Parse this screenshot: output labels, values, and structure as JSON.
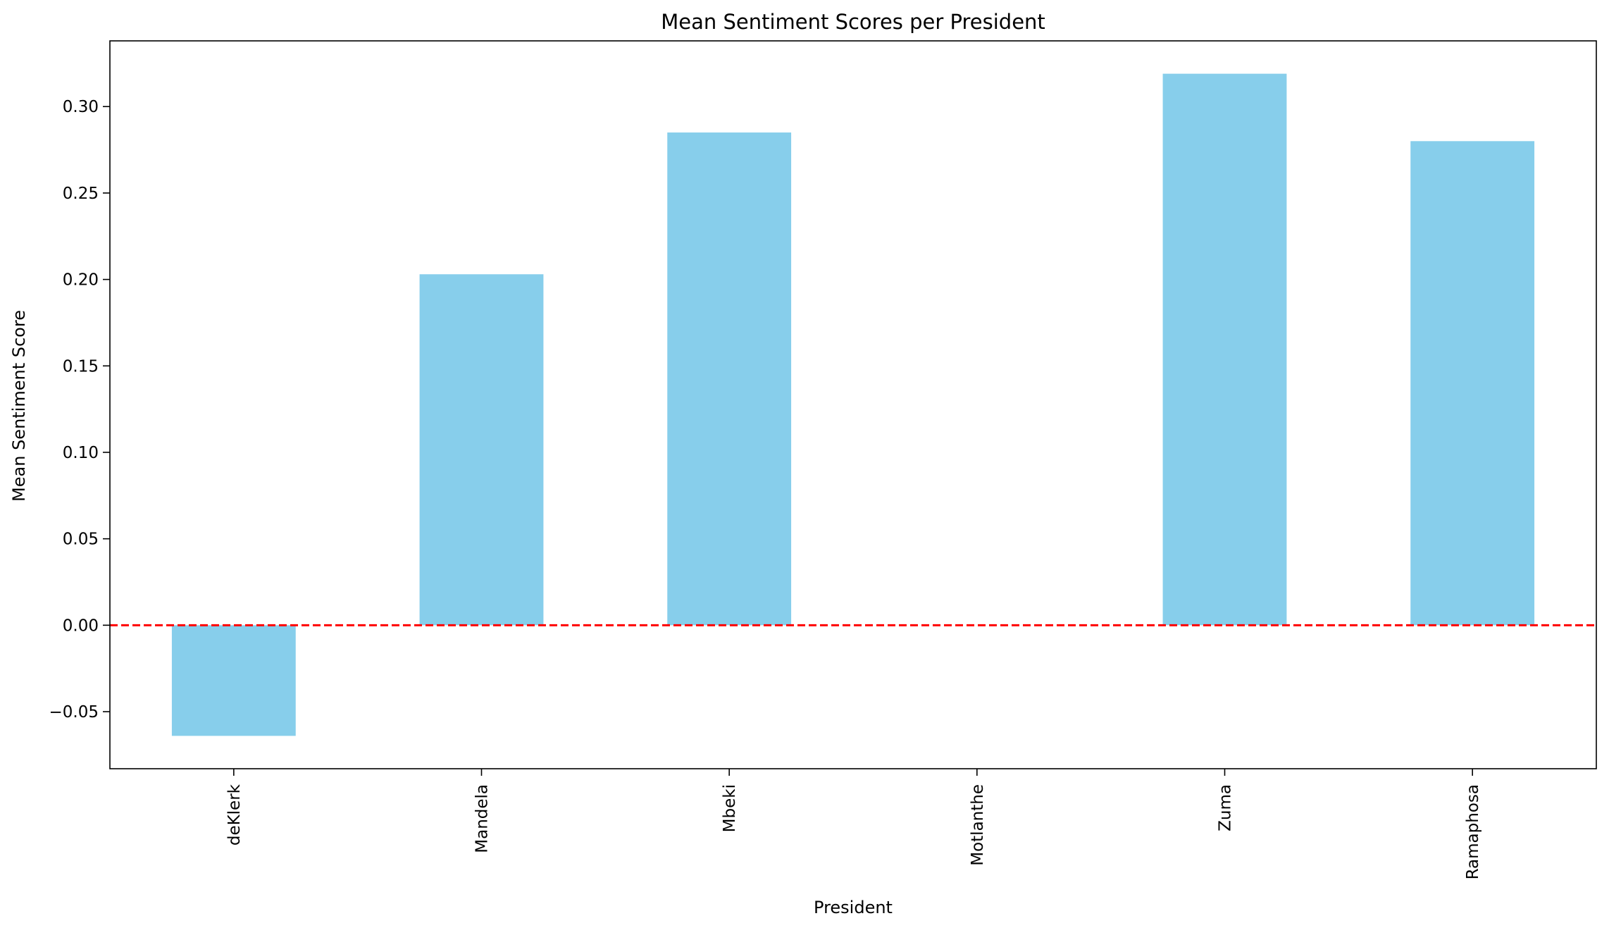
{
  "chart_data": {
    "type": "bar",
    "title": "Mean Sentiment Scores per President",
    "xlabel": "President",
    "ylabel": "Mean Sentiment Score",
    "categories": [
      "deKlerk",
      "Mandela",
      "Mbeki",
      "Motlanthe",
      "Zuma",
      "Ramaphosa"
    ],
    "values": [
      -0.064,
      0.203,
      0.285,
      0.0,
      0.319,
      0.28
    ],
    "ylim": [
      -0.083,
      0.338
    ],
    "yticks": [
      -0.05,
      0.0,
      0.05,
      0.1,
      0.15,
      0.2,
      0.25,
      0.3
    ],
    "ytick_labels": [
      "−0.05",
      "0.00",
      "0.05",
      "0.10",
      "0.15",
      "0.20",
      "0.25",
      "0.30"
    ],
    "grid": false,
    "legend": "none",
    "bar_color": "#87ceeb",
    "reference_line": {
      "y": 0.0,
      "style": "dashed",
      "color": "#ff0000"
    }
  }
}
